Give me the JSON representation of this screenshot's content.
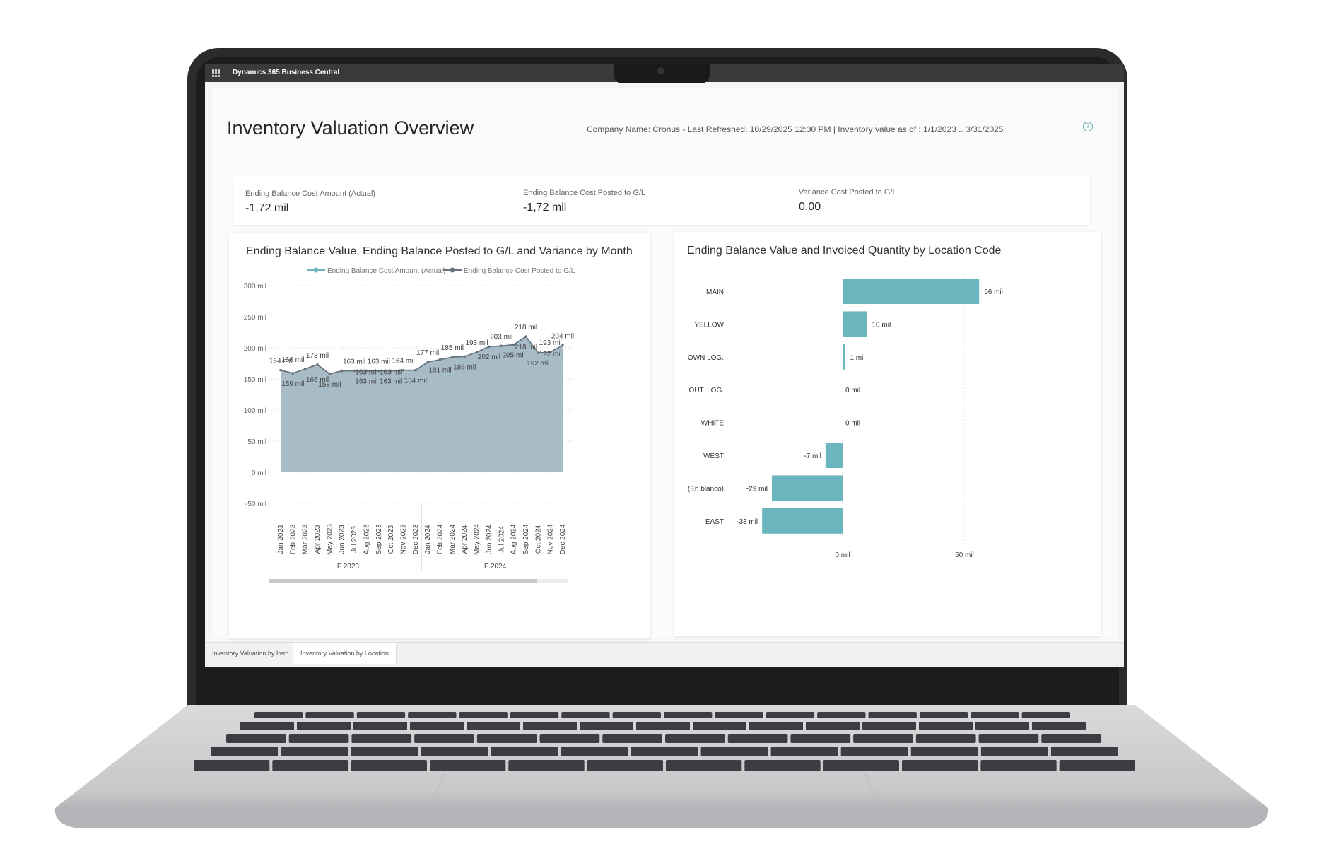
{
  "app": {
    "title": "Dynamics 365 Business Central"
  },
  "report": {
    "title": "Inventory Valuation Overview",
    "meta": "Company Name: Cronus - Last Refreshed: 10/29/2025 12:30 PM | Inventory value as of : 1/1/2023 .. 3/31/2025"
  },
  "kpis": [
    {
      "label": "Ending Balance Cost Amount (Actual)",
      "value": "-1,72 mil"
    },
    {
      "label": "Ending Balance Cost Posted to G/L",
      "value": "-1,72 mil"
    },
    {
      "label": "Variance Cost Posted to G/L",
      "value": "0,00"
    }
  ],
  "tabs": [
    {
      "label": "Inventory Valuation by Item"
    },
    {
      "label": "Inventory Valuation by Location"
    }
  ],
  "colors": {
    "teal": "#6bb5be",
    "area": "#a7bcc6",
    "line_posted": "#67717d",
    "accent": "#5aa9b3"
  },
  "chart_data": [
    {
      "type": "area",
      "title": "Ending Balance Value, Ending Balance Posted to G/L and Variance by Month",
      "legend": [
        "Ending Balance Cost Amount (Actual)",
        "Ending Balance Cost Posted to G/L"
      ],
      "legend_position": "top-right",
      "x": [
        "Jan 2023",
        "Feb 2023",
        "Mar 2023",
        "Apr 2023",
        "May 2023",
        "Jun 2023",
        "Jul 2023",
        "Aug 2023",
        "Sep 2023",
        "Oct 2023",
        "Nov 2023",
        "Dec 2023",
        "Jan 2024",
        "Feb 2024",
        "Mar 2024",
        "Apr 2024",
        "May 2024",
        "Jun 2024",
        "Jul 2024",
        "Aug 2024",
        "Sep 2024",
        "Oct 2024",
        "Nov 2024",
        "Dec 2024"
      ],
      "x_groups": [
        {
          "label": "F 2023",
          "start": 0,
          "end": 11
        },
        {
          "label": "F 2024",
          "start": 12,
          "end": 23
        }
      ],
      "series": [
        {
          "name": "Ending Balance Cost Amount (Actual)",
          "values": [
            164,
            159,
            166,
            173,
            158,
            163,
            163,
            163,
            163,
            163,
            164,
            164,
            177,
            181,
            185,
            186,
            193,
            202,
            203,
            205,
            218,
            192,
            193,
            204
          ]
        },
        {
          "name": "Ending Balance Cost Posted to G/L",
          "values": [
            164,
            159,
            166,
            173,
            158,
            163,
            163,
            163,
            163,
            163,
            164,
            164,
            177,
            181,
            185,
            186,
            193,
            202,
            203,
            205,
            218,
            192,
            193,
            204
          ]
        }
      ],
      "labels": [
        {
          "i": 0,
          "v": 164,
          "text": "164 mil",
          "pos": "above"
        },
        {
          "i": 1,
          "v": 166,
          "text": "166 mil",
          "pos": "above"
        },
        {
          "i": 1,
          "v": 159,
          "text": "159 mil",
          "pos": "below"
        },
        {
          "i": 3,
          "v": 173,
          "text": "173 mil",
          "pos": "above"
        },
        {
          "i": 3,
          "v": 166,
          "text": "166 mil",
          "pos": "below"
        },
        {
          "i": 4,
          "v": 158,
          "text": "158 mil",
          "pos": "below"
        },
        {
          "i": 6,
          "v": 163,
          "text": "163 mil",
          "pos": "above"
        },
        {
          "i": 7,
          "v": 163,
          "text": "163 mil",
          "pos": "mid"
        },
        {
          "i": 7,
          "v": 163,
          "text": "163 mil",
          "pos": "below"
        },
        {
          "i": 8,
          "v": 163,
          "text": "163 mil",
          "pos": "above"
        },
        {
          "i": 9,
          "v": 163,
          "text": "163 mil",
          "pos": "mid"
        },
        {
          "i": 9,
          "v": 163,
          "text": "163 mil",
          "pos": "below"
        },
        {
          "i": 10,
          "v": 164,
          "text": "164 mil",
          "pos": "above"
        },
        {
          "i": 11,
          "v": 164,
          "text": "164 mil",
          "pos": "below"
        },
        {
          "i": 12,
          "v": 177,
          "text": "177 mil",
          "pos": "above"
        },
        {
          "i": 13,
          "v": 181,
          "text": "181 mil",
          "pos": "below"
        },
        {
          "i": 14,
          "v": 185,
          "text": "185 mil",
          "pos": "above"
        },
        {
          "i": 15,
          "v": 186,
          "text": "186 mil",
          "pos": "below"
        },
        {
          "i": 16,
          "v": 193,
          "text": "193 mil",
          "pos": "above"
        },
        {
          "i": 17,
          "v": 202,
          "text": "202 mil",
          "pos": "below"
        },
        {
          "i": 18,
          "v": 203,
          "text": "203 mil",
          "pos": "above"
        },
        {
          "i": 19,
          "v": 205,
          "text": "205 mil",
          "pos": "below"
        },
        {
          "i": 20,
          "v": 218,
          "text": "218 mil",
          "pos": "above"
        },
        {
          "i": 20,
          "v": 218,
          "text": "218 mil",
          "pos": "below"
        },
        {
          "i": 21,
          "v": 192,
          "text": "192 mil",
          "pos": "below"
        },
        {
          "i": 22,
          "v": 193,
          "text": "193 mil",
          "pos": "above"
        },
        {
          "i": 22,
          "v": 192,
          "text": "192 mil",
          "pos": "mid"
        },
        {
          "i": 23,
          "v": 204,
          "text": "204 mil",
          "pos": "above"
        }
      ],
      "y_ticks": [
        {
          "v": 300,
          "text": "300 mil"
        },
        {
          "v": 250,
          "text": "250 mil"
        },
        {
          "v": 200,
          "text": "200 mil"
        },
        {
          "v": 150,
          "text": "150 mil"
        },
        {
          "v": 100,
          "text": "100 mil"
        },
        {
          "v": 50,
          "text": "50 mil"
        },
        {
          "v": 0,
          "text": "0 mil"
        },
        {
          "v": -50,
          "text": "-50 mil"
        }
      ],
      "ylim": [
        -50,
        300
      ],
      "grid": true
    },
    {
      "type": "bar",
      "orientation": "horizontal",
      "title": "Ending Balance Value and Invoiced Quantity by Location Code",
      "categories": [
        "MAIN",
        "YELLOW",
        "OWN LOG.",
        "OUT. LOG.",
        "WHITE",
        "WEST",
        "(En blanco)",
        "EAST"
      ],
      "values": [
        56,
        10,
        1,
        0,
        0,
        -7,
        -29,
        -33
      ],
      "value_labels": [
        "56 mil",
        "10 mil",
        "1 mil",
        "0 mil",
        "0 mil",
        "-7 mil",
        "-29 mil",
        "-33 mil"
      ],
      "x_ticks": [
        {
          "v": 0,
          "text": "0 mil"
        },
        {
          "v": 50,
          "text": "50 mil"
        }
      ],
      "xlim": [
        -33,
        56
      ],
      "grid": true
    }
  ]
}
